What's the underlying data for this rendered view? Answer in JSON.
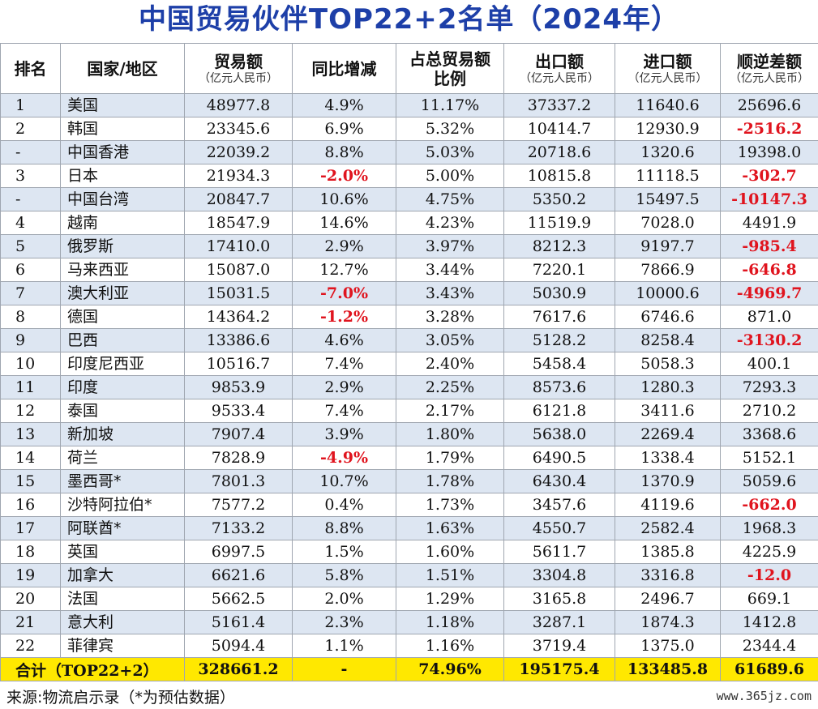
{
  "title": "中国贸易伙伴TOP22+2名单（2024年）",
  "headers": {
    "rank": "排名",
    "name": "国家/地区",
    "trade": "贸易额",
    "trade_unit": "（亿元人民币）",
    "yoy": "同比增减",
    "share_l1": "占总贸易额",
    "share_l2": "比例",
    "export": "出口额",
    "export_unit": "（亿元人民币）",
    "import": "进口额",
    "import_unit": "（亿元人民币）",
    "balance": "顺逆差额",
    "balance_unit": "（亿元人民币）"
  },
  "rows": [
    {
      "rank": "1",
      "name": "美国",
      "trade": "48977.8",
      "yoy": "4.9%",
      "share": "11.17%",
      "export": "37337.2",
      "import": "11640.6",
      "balance": "25696.6"
    },
    {
      "rank": "2",
      "name": "韩国",
      "trade": "23345.6",
      "yoy": "6.9%",
      "share": "5.32%",
      "export": "10414.7",
      "import": "12930.9",
      "balance": "-2516.2"
    },
    {
      "rank": "-",
      "name": "中国香港",
      "trade": "22039.2",
      "yoy": "8.8%",
      "share": "5.03%",
      "export": "20718.6",
      "import": "1320.6",
      "balance": "19398.0"
    },
    {
      "rank": "3",
      "name": "日本",
      "trade": "21934.3",
      "yoy": "-2.0%",
      "share": "5.00%",
      "export": "10815.8",
      "import": "11118.5",
      "balance": "-302.7"
    },
    {
      "rank": "-",
      "name": "中国台湾",
      "trade": "20847.7",
      "yoy": "10.6%",
      "share": "4.75%",
      "export": "5350.2",
      "import": "15497.5",
      "balance": "-10147.3"
    },
    {
      "rank": "4",
      "name": "越南",
      "trade": "18547.9",
      "yoy": "14.6%",
      "share": "4.23%",
      "export": "11519.9",
      "import": "7028.0",
      "balance": "4491.9"
    },
    {
      "rank": "5",
      "name": "俄罗斯",
      "trade": "17410.0",
      "yoy": "2.9%",
      "share": "3.97%",
      "export": "8212.3",
      "import": "9197.7",
      "balance": "-985.4"
    },
    {
      "rank": "6",
      "name": "马来西亚",
      "trade": "15087.0",
      "yoy": "12.7%",
      "share": "3.44%",
      "export": "7220.1",
      "import": "7866.9",
      "balance": "-646.8"
    },
    {
      "rank": "7",
      "name": "澳大利亚",
      "trade": "15031.5",
      "yoy": "-7.0%",
      "share": "3.43%",
      "export": "5030.9",
      "import": "10000.6",
      "balance": "-4969.7"
    },
    {
      "rank": "8",
      "name": "德国",
      "trade": "14364.2",
      "yoy": "-1.2%",
      "share": "3.28%",
      "export": "7617.6",
      "import": "6746.6",
      "balance": "871.0"
    },
    {
      "rank": "9",
      "name": "巴西",
      "trade": "13386.6",
      "yoy": "4.6%",
      "share": "3.05%",
      "export": "5128.2",
      "import": "8258.4",
      "balance": "-3130.2"
    },
    {
      "rank": "10",
      "name": "印度尼西亚",
      "trade": "10516.7",
      "yoy": "7.4%",
      "share": "2.40%",
      "export": "5458.4",
      "import": "5058.3",
      "balance": "400.1"
    },
    {
      "rank": "11",
      "name": "印度",
      "trade": "9853.9",
      "yoy": "2.9%",
      "share": "2.25%",
      "export": "8573.6",
      "import": "1280.3",
      "balance": "7293.3"
    },
    {
      "rank": "12",
      "name": "泰国",
      "trade": "9533.4",
      "yoy": "7.4%",
      "share": "2.17%",
      "export": "6121.8",
      "import": "3411.6",
      "balance": "2710.2"
    },
    {
      "rank": "13",
      "name": "新加坡",
      "trade": "7907.4",
      "yoy": "3.9%",
      "share": "1.80%",
      "export": "5638.0",
      "import": "2269.4",
      "balance": "3368.6"
    },
    {
      "rank": "14",
      "name": "荷兰",
      "trade": "7828.9",
      "yoy": "-4.9%",
      "share": "1.79%",
      "export": "6490.5",
      "import": "1338.4",
      "balance": "5152.1"
    },
    {
      "rank": "15",
      "name": "墨西哥*",
      "trade": "7801.3",
      "yoy": "10.7%",
      "share": "1.78%",
      "export": "6430.4",
      "import": "1370.9",
      "balance": "5059.6"
    },
    {
      "rank": "16",
      "name": "沙特阿拉伯*",
      "trade": "7577.2",
      "yoy": "0.4%",
      "share": "1.73%",
      "export": "3457.6",
      "import": "4119.6",
      "balance": "-662.0"
    },
    {
      "rank": "17",
      "name": "阿联酋*",
      "trade": "7133.2",
      "yoy": "8.8%",
      "share": "1.63%",
      "export": "4550.7",
      "import": "2582.4",
      "balance": "1968.3"
    },
    {
      "rank": "18",
      "name": "英国",
      "trade": "6997.5",
      "yoy": "1.5%",
      "share": "1.60%",
      "export": "5611.7",
      "import": "1385.8",
      "balance": "4225.9"
    },
    {
      "rank": "19",
      "name": "加拿大",
      "trade": "6621.6",
      "yoy": "5.8%",
      "share": "1.51%",
      "export": "3304.8",
      "import": "3316.8",
      "balance": "-12.0"
    },
    {
      "rank": "20",
      "name": "法国",
      "trade": "5662.5",
      "yoy": "2.0%",
      "share": "1.29%",
      "export": "3165.8",
      "import": "2496.7",
      "balance": "669.1"
    },
    {
      "rank": "21",
      "name": "意大利",
      "trade": "5161.4",
      "yoy": "2.3%",
      "share": "1.18%",
      "export": "3287.1",
      "import": "1874.3",
      "balance": "1412.8"
    },
    {
      "rank": "22",
      "name": "菲律宾",
      "trade": "5094.4",
      "yoy": "1.1%",
      "share": "1.16%",
      "export": "3719.4",
      "import": "1375.0",
      "balance": "2344.4"
    }
  ],
  "total": {
    "label": "合计（TOP22+2）",
    "trade": "328661.2",
    "yoy": "-",
    "share": "74.96%",
    "export": "195175.4",
    "import": "133485.8",
    "balance": "61689.6"
  },
  "footer": {
    "source": "来源:物流启示录（*为预估数据）",
    "watermark": "www.365jz.com"
  },
  "colors": {
    "title": "#1d3fa8",
    "negative": "#e0141e",
    "stripe": "#dde6f2",
    "total_row": "#ffe800"
  }
}
